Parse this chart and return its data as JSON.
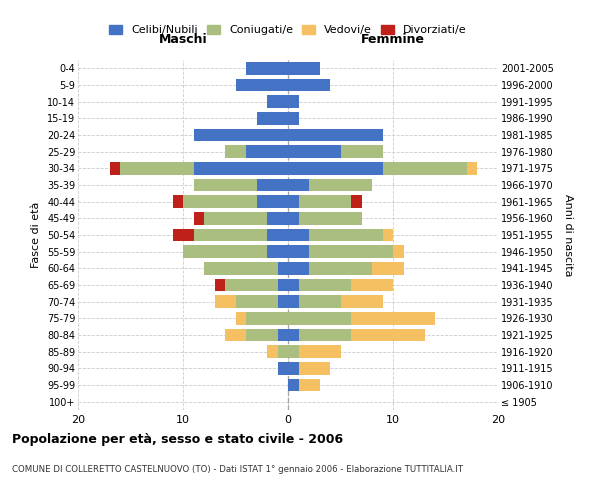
{
  "age_groups": [
    "100+",
    "95-99",
    "90-94",
    "85-89",
    "80-84",
    "75-79",
    "70-74",
    "65-69",
    "60-64",
    "55-59",
    "50-54",
    "45-49",
    "40-44",
    "35-39",
    "30-34",
    "25-29",
    "20-24",
    "15-19",
    "10-14",
    "5-9",
    "0-4"
  ],
  "birth_years": [
    "≤ 1905",
    "1906-1910",
    "1911-1915",
    "1916-1920",
    "1921-1925",
    "1926-1930",
    "1931-1935",
    "1936-1940",
    "1941-1945",
    "1946-1950",
    "1951-1955",
    "1956-1960",
    "1961-1965",
    "1966-1970",
    "1971-1975",
    "1976-1980",
    "1981-1985",
    "1986-1990",
    "1991-1995",
    "1996-2000",
    "2001-2005"
  ],
  "colors": {
    "celibi": "#4472C4",
    "coniugati": "#AABF7F",
    "vedovi": "#F5C061",
    "divorziati": "#C0201A"
  },
  "males": {
    "celibi": [
      0,
      0,
      1,
      0,
      1,
      0,
      1,
      1,
      1,
      2,
      2,
      2,
      3,
      3,
      9,
      4,
      9,
      3,
      2,
      5,
      4
    ],
    "coniugati": [
      0,
      0,
      0,
      1,
      3,
      4,
      4,
      5,
      7,
      8,
      7,
      6,
      7,
      6,
      7,
      2,
      0,
      0,
      0,
      0,
      0
    ],
    "vedovi": [
      0,
      0,
      0,
      1,
      2,
      1,
      2,
      0,
      0,
      0,
      0,
      0,
      0,
      0,
      0,
      0,
      0,
      0,
      0,
      0,
      0
    ],
    "divorziati": [
      0,
      0,
      0,
      0,
      0,
      0,
      0,
      1,
      0,
      0,
      2,
      1,
      1,
      0,
      1,
      0,
      0,
      0,
      0,
      0,
      0
    ]
  },
  "females": {
    "celibi": [
      0,
      1,
      1,
      0,
      1,
      0,
      1,
      1,
      2,
      2,
      2,
      1,
      1,
      2,
      9,
      5,
      9,
      1,
      1,
      4,
      3
    ],
    "coniugati": [
      0,
      0,
      0,
      1,
      5,
      6,
      4,
      5,
      6,
      8,
      7,
      6,
      5,
      6,
      8,
      4,
      0,
      0,
      0,
      0,
      0
    ],
    "vedovi": [
      0,
      2,
      3,
      4,
      7,
      8,
      4,
      4,
      3,
      1,
      1,
      0,
      0,
      0,
      1,
      0,
      0,
      0,
      0,
      0,
      0
    ],
    "divorziati": [
      0,
      0,
      0,
      0,
      0,
      0,
      0,
      0,
      0,
      0,
      0,
      0,
      1,
      0,
      0,
      0,
      0,
      0,
      0,
      0,
      0
    ]
  },
  "xlim": 20,
  "title": "Popolazione per età, sesso e stato civile - 2006",
  "subtitle": "COMUNE DI COLLERETTO CASTELNUOVO (TO) - Dati ISTAT 1° gennaio 2006 - Elaborazione TUTTITALIA.IT",
  "ylabel_left": "Fasce di età",
  "ylabel_right": "Anni di nascita",
  "xlabel_left": "Maschi",
  "xlabel_right": "Femmine",
  "legend_labels": [
    "Celibi/Nubili",
    "Coniugati/e",
    "Vedovi/e",
    "Divorziati/e"
  ],
  "background_color": "#FFFFFF",
  "grid_color": "#CCCCCC"
}
